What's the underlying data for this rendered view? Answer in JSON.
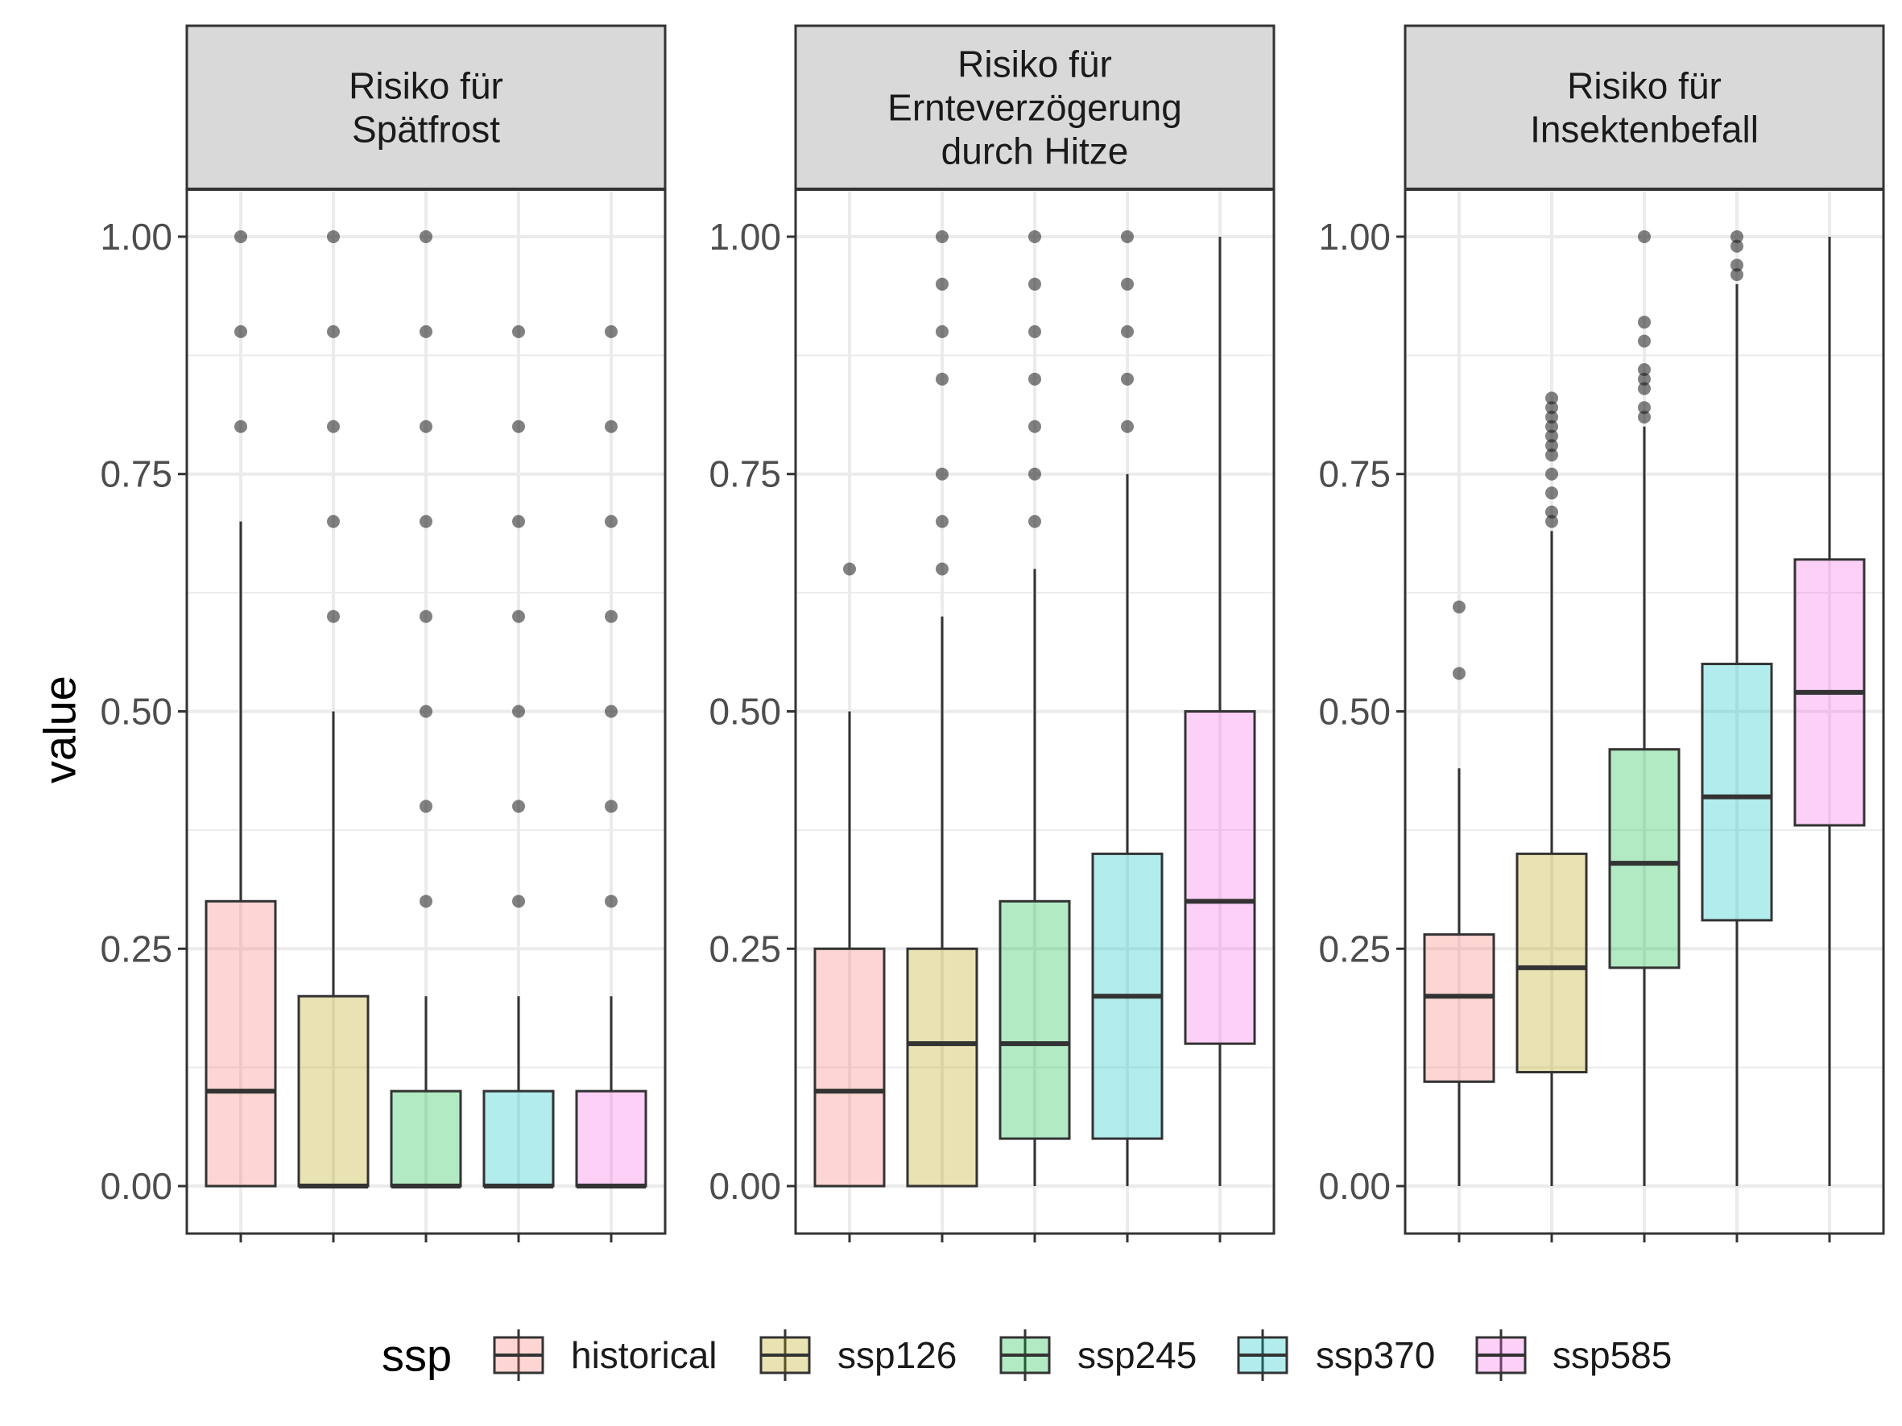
{
  "chart_data": {
    "type": "boxplot",
    "y_label": "value",
    "ylim": [
      -0.05,
      1.05
    ],
    "y_ticks": [
      "0.00",
      "0.25",
      "0.50",
      "0.75",
      "1.00"
    ],
    "y_tick_values": [
      0,
      0.25,
      0.5,
      0.75,
      1.0
    ],
    "grid": true,
    "legend": {
      "title": "ssp",
      "position": "bottom",
      "entries": [
        "historical",
        "ssp126",
        "ssp245",
        "ssp370",
        "ssp585"
      ]
    },
    "colors": {
      "historical": "#F8766D",
      "ssp126": "#B79F00",
      "ssp245": "#00BA38",
      "ssp370": "#00BFC4",
      "ssp585": "#F564E3",
      "fill_opacity": 0.3
    },
    "panels": [
      {
        "title_lines": [
          "Risiko für",
          "Spätfrost"
        ],
        "boxes": [
          {
            "group": "historical",
            "q1": 0.0,
            "median": 0.1,
            "q3": 0.3,
            "whisker_low": 0.0,
            "whisker_high": 0.7,
            "outliers": [
              0.8,
              0.9,
              1.0
            ]
          },
          {
            "group": "ssp126",
            "q1": 0.0,
            "median": 0.0,
            "q3": 0.2,
            "whisker_low": 0.0,
            "whisker_high": 0.5,
            "outliers": [
              0.6,
              0.7,
              0.8,
              0.9,
              1.0
            ]
          },
          {
            "group": "ssp245",
            "q1": 0.0,
            "median": 0.0,
            "q3": 0.1,
            "whisker_low": 0.0,
            "whisker_high": 0.2,
            "outliers": [
              0.3,
              0.4,
              0.5,
              0.6,
              0.7,
              0.8,
              0.9,
              1.0
            ]
          },
          {
            "group": "ssp370",
            "q1": 0.0,
            "median": 0.0,
            "q3": 0.1,
            "whisker_low": 0.0,
            "whisker_high": 0.2,
            "outliers": [
              0.3,
              0.4,
              0.5,
              0.6,
              0.7,
              0.8,
              0.9
            ]
          },
          {
            "group": "ssp585",
            "q1": 0.0,
            "median": 0.0,
            "q3": 0.1,
            "whisker_low": 0.0,
            "whisker_high": 0.2,
            "outliers": [
              0.3,
              0.4,
              0.5,
              0.6,
              0.7,
              0.8,
              0.9
            ]
          }
        ]
      },
      {
        "title_lines": [
          "Risiko für",
          "Ernteverzögerung",
          "durch Hitze"
        ],
        "boxes": [
          {
            "group": "historical",
            "q1": 0.0,
            "median": 0.1,
            "q3": 0.25,
            "whisker_low": 0.0,
            "whisker_high": 0.5,
            "outliers": [
              0.65
            ]
          },
          {
            "group": "ssp126",
            "q1": 0.0,
            "median": 0.15,
            "q3": 0.25,
            "whisker_low": 0.0,
            "whisker_high": 0.6,
            "outliers": [
              0.65,
              0.7,
              0.75,
              0.85,
              0.9,
              0.95,
              1.0
            ]
          },
          {
            "group": "ssp245",
            "q1": 0.05,
            "median": 0.15,
            "q3": 0.3,
            "whisker_low": 0.0,
            "whisker_high": 0.65,
            "outliers": [
              0.7,
              0.75,
              0.8,
              0.85,
              0.9,
              0.95,
              1.0
            ]
          },
          {
            "group": "ssp370",
            "q1": 0.05,
            "median": 0.2,
            "q3": 0.35,
            "whisker_low": 0.0,
            "whisker_high": 0.75,
            "outliers": [
              0.8,
              0.85,
              0.9,
              0.95,
              1.0
            ]
          },
          {
            "group": "ssp585",
            "q1": 0.15,
            "median": 0.3,
            "q3": 0.5,
            "whisker_low": 0.0,
            "whisker_high": 1.0,
            "outliers": []
          }
        ]
      },
      {
        "title_lines": [
          "Risiko für",
          "Insektenbefall"
        ],
        "boxes": [
          {
            "group": "historical",
            "q1": 0.11,
            "median": 0.2,
            "q3": 0.265,
            "whisker_low": 0.0,
            "whisker_high": 0.44,
            "outliers": [
              0.54,
              0.61
            ]
          },
          {
            "group": "ssp126",
            "q1": 0.12,
            "median": 0.23,
            "q3": 0.35,
            "whisker_low": 0.0,
            "whisker_high": 0.69,
            "outliers": [
              0.7,
              0.71,
              0.73,
              0.75,
              0.77,
              0.78,
              0.79,
              0.8,
              0.81,
              0.82,
              0.83
            ]
          },
          {
            "group": "ssp245",
            "q1": 0.23,
            "median": 0.34,
            "q3": 0.46,
            "whisker_low": 0.0,
            "whisker_high": 0.8,
            "outliers": [
              0.81,
              0.82,
              0.84,
              0.85,
              0.86,
              0.89,
              0.91,
              1.0
            ]
          },
          {
            "group": "ssp370",
            "q1": 0.28,
            "median": 0.41,
            "q3": 0.55,
            "whisker_low": 0.0,
            "whisker_high": 0.95,
            "outliers": [
              0.96,
              0.97,
              0.99,
              1.0
            ]
          },
          {
            "group": "ssp585",
            "q1": 0.38,
            "median": 0.52,
            "q3": 0.66,
            "whisker_low": 0.0,
            "whisker_high": 1.0,
            "outliers": []
          }
        ]
      }
    ]
  }
}
